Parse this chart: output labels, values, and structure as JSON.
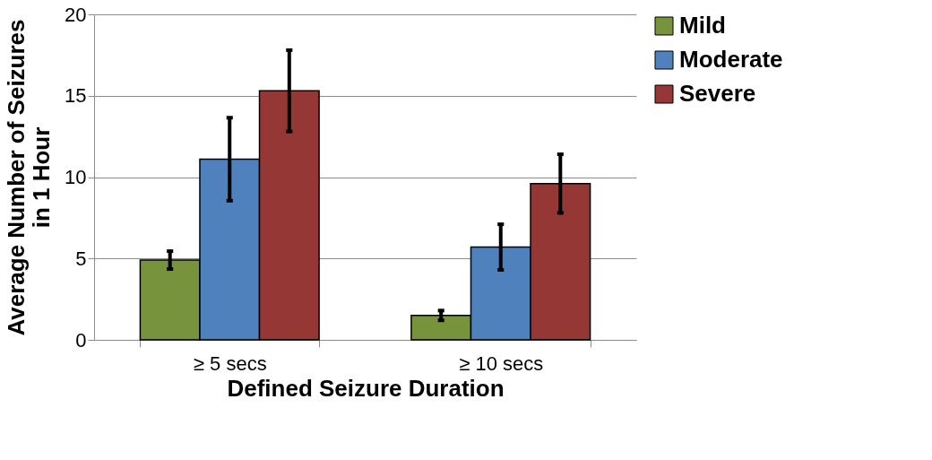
{
  "chart_data": {
    "type": "bar",
    "xlabel": "Defined Seizure Duration",
    "ylabel": "Average Number of Seizures in 1 Hour",
    "categories": [
      "≥ 5 secs",
      "≥ 10 secs"
    ],
    "series": [
      {
        "name": "Mild",
        "color": "#77933c",
        "values": [
          4.9,
          1.5
        ],
        "errors": [
          0.55,
          0.3
        ]
      },
      {
        "name": "Moderate",
        "color": "#4f81bd",
        "values": [
          11.1,
          5.7
        ],
        "errors": [
          2.55,
          1.4
        ]
      },
      {
        "name": "Severe",
        "color": "#953735",
        "values": [
          15.3,
          9.6
        ],
        "errors": [
          2.5,
          1.8
        ]
      }
    ],
    "ylim": [
      0,
      20
    ],
    "yticks": [
      0,
      5,
      10,
      15,
      20
    ],
    "grid": "y",
    "legend": "right"
  }
}
